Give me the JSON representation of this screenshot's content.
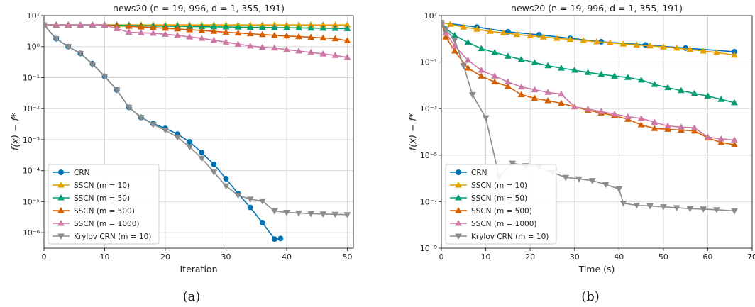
{
  "chart_data": [
    {
      "type": "line",
      "title": "news20 (n = 19, 996, d = 1, 355, 191)",
      "xlabel": "Iteration",
      "ylabel": "f(x) − f*",
      "xlim": [
        0,
        51
      ],
      "ylim_log10": [
        -6.5,
        1
      ],
      "yscale": "log",
      "xticks": [
        0,
        10,
        20,
        30,
        40,
        50
      ],
      "yticks": [
        "10¹",
        "10⁰",
        "10⁻¹",
        "10⁻²",
        "10⁻³",
        "10⁻⁴",
        "10⁻⁵",
        "10⁻⁶"
      ],
      "grid": true,
      "legend": "lower-left",
      "caption": "(a)",
      "series": [
        {
          "name": "CRN",
          "color": "#0072B2",
          "marker": "circle",
          "x": [
            0,
            2,
            4,
            6,
            8,
            10,
            12,
            14,
            16,
            18,
            20,
            22,
            24,
            26,
            28,
            30,
            32,
            34,
            36,
            38,
            39
          ],
          "y": [
            5,
            1.8,
            1.0,
            0.6,
            0.28,
            0.11,
            0.04,
            0.011,
            0.0052,
            0.0033,
            0.0023,
            0.0015,
            0.00085,
            0.00038,
            0.00016,
            5.5e-05,
            1.8e-05,
            6.5e-06,
            2.1e-06,
            6.2e-07,
            6.5e-07
          ]
        },
        {
          "name": "SSCN (m = 10)",
          "color": "#E69F00",
          "marker": "triangle-up",
          "x": [
            0,
            2,
            4,
            6,
            8,
            10,
            12,
            14,
            16,
            18,
            20,
            22,
            24,
            26,
            28,
            30,
            32,
            34,
            36,
            38,
            40,
            42,
            44,
            46,
            48,
            50
          ],
          "y": [
            5,
            5,
            5,
            5,
            5,
            5,
            5,
            5,
            5,
            5,
            5,
            5,
            5,
            5,
            5,
            5,
            5,
            5,
            5,
            5,
            5,
            5,
            5,
            5,
            5,
            5
          ]
        },
        {
          "name": "SSCN (m = 50)",
          "color": "#009E73",
          "marker": "triangle-up",
          "x": [
            0,
            2,
            4,
            6,
            8,
            10,
            12,
            14,
            16,
            18,
            20,
            22,
            24,
            26,
            28,
            30,
            32,
            34,
            36,
            38,
            40,
            42,
            44,
            46,
            48,
            50
          ],
          "y": [
            5,
            5,
            5,
            5,
            5,
            5,
            4.9,
            4.8,
            4.7,
            4.6,
            4.55,
            4.5,
            4.45,
            4.4,
            4.35,
            4.3,
            4.25,
            4.2,
            4.15,
            4.1,
            4.05,
            4.0,
            3.95,
            3.9,
            3.85,
            3.8
          ]
        },
        {
          "name": "SSCN (m = 500)",
          "color": "#D55E00",
          "marker": "triangle-up",
          "x": [
            0,
            2,
            4,
            6,
            8,
            10,
            12,
            14,
            16,
            18,
            20,
            22,
            24,
            26,
            28,
            30,
            32,
            34,
            36,
            38,
            40,
            42,
            44,
            46,
            48,
            50
          ],
          "y": [
            5,
            5,
            5,
            5,
            5,
            5,
            4.7,
            4.5,
            4.3,
            4.1,
            3.9,
            3.7,
            3.5,
            3.3,
            3.1,
            2.9,
            2.75,
            2.6,
            2.45,
            2.3,
            2.2,
            2.1,
            2.0,
            1.9,
            1.8,
            1.55
          ]
        },
        {
          "name": "SSCN (m = 1000)",
          "color": "#CC79A7",
          "marker": "triangle-up",
          "x": [
            0,
            2,
            4,
            6,
            8,
            10,
            12,
            14,
            16,
            18,
            20,
            22,
            24,
            26,
            28,
            30,
            32,
            34,
            36,
            38,
            40,
            42,
            44,
            46,
            48,
            50
          ],
          "y": [
            5,
            5,
            5,
            5,
            5,
            5,
            3.8,
            2.9,
            2.8,
            2.7,
            2.5,
            2.3,
            2.05,
            1.85,
            1.6,
            1.4,
            1.2,
            1.05,
            0.95,
            0.9,
            0.8,
            0.72,
            0.65,
            0.58,
            0.52,
            0.45
          ]
        },
        {
          "name": "Krylov CRN (m = 10)",
          "color": "#8C8C8C",
          "marker": "triangle-down",
          "x": [
            0,
            2,
            4,
            6,
            8,
            10,
            12,
            14,
            16,
            18,
            20,
            22,
            24,
            26,
            28,
            30,
            32,
            34,
            36,
            38,
            40,
            42,
            44,
            46,
            48,
            50
          ],
          "y": [
            5,
            1.8,
            1.0,
            0.6,
            0.27,
            0.11,
            0.04,
            0.011,
            0.0052,
            0.0031,
            0.002,
            0.0012,
            0.00058,
            0.00025,
            9e-05,
            3.2e-05,
            1.6e-05,
            1.2e-05,
            1.05e-05,
            5e-06,
            4.5e-06,
            4.3e-06,
            4.1e-06,
            4e-06,
            3.9e-06,
            3.8e-06
          ]
        }
      ]
    },
    {
      "type": "line",
      "title": "news20 (n = 19, 996, d = 1, 355, 191)",
      "xlabel": "Time (s)",
      "ylabel": "f(x) − f*",
      "xlim": [
        0,
        70
      ],
      "ylim_log10": [
        -9,
        1
      ],
      "yscale": "log",
      "xticks": [
        0,
        10,
        20,
        30,
        40,
        50,
        60,
        70
      ],
      "yticks": [
        "10¹",
        "10⁻¹",
        "10⁻³",
        "10⁻⁵",
        "10⁻⁷",
        "10⁻⁹"
      ],
      "grid": true,
      "legend": "lower-left",
      "caption": "(b)",
      "series": [
        {
          "name": "CRN",
          "color": "#0072B2",
          "marker": "circle",
          "x": [
            0,
            8,
            15,
            22,
            29,
            36,
            46,
            55,
            66
          ],
          "y": [
            5,
            3.2,
            2.0,
            1.5,
            1.05,
            0.75,
            0.55,
            0.4,
            0.28
          ]
        },
        {
          "name": "SSCN (m = 10)",
          "color": "#E69F00",
          "marker": "triangle-up",
          "x": [
            0,
            2,
            5,
            8,
            11,
            14,
            17,
            20,
            23,
            26,
            29,
            32,
            35,
            38,
            41,
            44,
            47,
            50,
            53,
            56,
            59,
            62,
            66
          ],
          "y": [
            5,
            4.2,
            3.2,
            2.6,
            2.1,
            1.8,
            1.55,
            1.35,
            1.2,
            1.05,
            0.95,
            0.85,
            0.75,
            0.68,
            0.6,
            0.55,
            0.5,
            0.45,
            0.4,
            0.35,
            0.3,
            0.26,
            0.2
          ]
        },
        {
          "name": "SSCN (m = 50)",
          "color": "#009E73",
          "marker": "triangle-up",
          "x": [
            0,
            1,
            3,
            6,
            9,
            12,
            15,
            18,
            21,
            24,
            27,
            30,
            33,
            36,
            39,
            42,
            45,
            48,
            51,
            54,
            57,
            60,
            63,
            66
          ],
          "y": [
            5,
            2.8,
            1.4,
            0.7,
            0.38,
            0.26,
            0.18,
            0.13,
            0.095,
            0.07,
            0.055,
            0.045,
            0.036,
            0.03,
            0.025,
            0.022,
            0.017,
            0.011,
            0.008,
            0.006,
            0.0045,
            0.0035,
            0.0025,
            0.0018
          ]
        },
        {
          "name": "SSCN (m = 500)",
          "color": "#D55E00",
          "marker": "triangle-up",
          "x": [
            0,
            1,
            3,
            6,
            9,
            12,
            15,
            18,
            21,
            24,
            27,
            30,
            33,
            36,
            39,
            42,
            45,
            48,
            51,
            54,
            57,
            60,
            63,
            66
          ],
          "y": [
            5,
            1.2,
            0.3,
            0.055,
            0.025,
            0.014,
            0.009,
            0.004,
            0.0028,
            0.0022,
            0.0017,
            0.0012,
            0.00085,
            0.00065,
            0.0005,
            0.00035,
            0.0002,
            0.00014,
            0.00013,
            0.00012,
            0.00011,
            5.5e-05,
            3.5e-05,
            2.8e-05
          ]
        },
        {
          "name": "SSCN (m = 1000)",
          "color": "#CC79A7",
          "marker": "triangle-up",
          "x": [
            0,
            1,
            3,
            6,
            9,
            12,
            15,
            18,
            21,
            24,
            27,
            30,
            33,
            36,
            39,
            42,
            45,
            48,
            51,
            54,
            57,
            60,
            63,
            66
          ],
          "y": [
            5,
            1.8,
            0.5,
            0.12,
            0.045,
            0.025,
            0.014,
            0.0085,
            0.0065,
            0.005,
            0.0042,
            0.0012,
            0.00095,
            0.00075,
            0.00058,
            0.00045,
            0.00038,
            0.00026,
            0.00018,
            0.00016,
            0.00015,
            6e-05,
            5e-05,
            4.5e-05
          ]
        },
        {
          "name": "Krylov CRN (m = 10)",
          "color": "#8C8C8C",
          "marker": "triangle-down",
          "x": [
            0,
            1,
            3,
            5,
            7,
            10,
            13,
            16,
            19,
            22,
            25,
            28,
            31,
            34,
            37,
            40,
            41,
            44,
            47,
            50,
            53,
            56,
            59,
            62,
            66
          ],
          "y": [
            5,
            2.5,
            0.9,
            0.07,
            0.004,
            0.0004,
            1.2e-06,
            4.5e-06,
            3.5e-06,
            3e-06,
            1.8e-06,
            1.1e-06,
            9.5e-07,
            8e-07,
            5.5e-07,
            3.5e-07,
            8.5e-08,
            7e-08,
            6.5e-08,
            6e-08,
            5.5e-08,
            5e-08,
            4.8e-08,
            4.5e-08,
            4e-08
          ]
        }
      ]
    }
  ]
}
